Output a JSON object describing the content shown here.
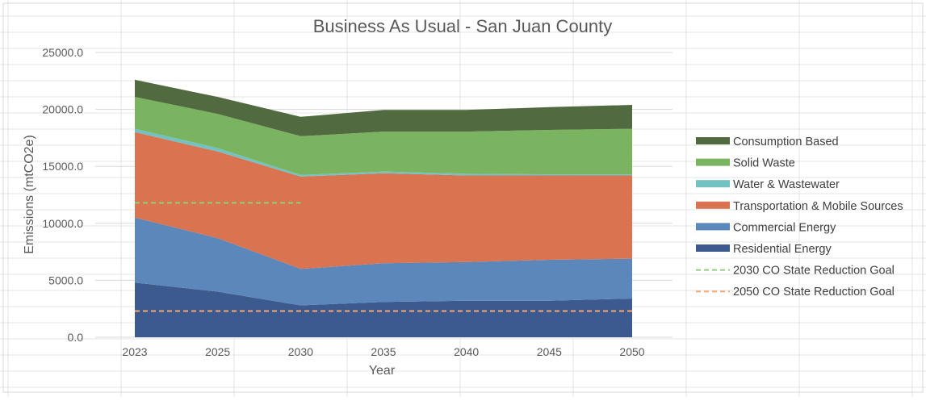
{
  "chart_data": {
    "type": "area",
    "stacked": true,
    "title": "Business As Usual - San Juan County",
    "xlabel": "Year",
    "ylabel": "Emissions (mtCO2e)",
    "categories": [
      "2023",
      "2025",
      "2030",
      "2035",
      "2040",
      "2045",
      "2050"
    ],
    "ylim": [
      0,
      25000
    ],
    "yticks": [
      "0.0",
      "5000.0",
      "10000.0",
      "15000.0",
      "20000.0",
      "25000.0"
    ],
    "ytick_values": [
      0,
      5000,
      10000,
      15000,
      20000,
      25000
    ],
    "grid": true,
    "legend_position": "right",
    "series": [
      {
        "name": "Residential Energy",
        "color": "#3d5a8f",
        "values": [
          4800,
          4000,
          2800,
          3100,
          3200,
          3200,
          3400
        ]
      },
      {
        "name": "Commercial Energy",
        "color": "#5b87bb",
        "values": [
          5700,
          4700,
          3200,
          3400,
          3400,
          3600,
          3500
        ]
      },
      {
        "name": "Transportation & Mobile Sources",
        "color": "#d97350",
        "values": [
          7500,
          7600,
          8100,
          7900,
          7600,
          7400,
          7300
        ]
      },
      {
        "name": "Water & Wastewater",
        "color": "#72c2c4",
        "values": [
          300,
          300,
          150,
          150,
          150,
          100,
          100
        ]
      },
      {
        "name": "Solid Waste",
        "color": "#7bb460",
        "values": [
          2800,
          3000,
          3400,
          3500,
          3700,
          3900,
          4000
        ]
      },
      {
        "name": "Consumption Based",
        "color": "#526a40",
        "values": [
          1500,
          1500,
          1700,
          1900,
          1900,
          2000,
          2100
        ]
      }
    ],
    "reference_lines": [
      {
        "name": "2030 CO State Reduction Goal",
        "color": "#8fd07a",
        "value": 11800,
        "from": "2023",
        "to": "2030"
      },
      {
        "name": "2050 CO State Reduction Goal",
        "color": "#f4a870",
        "value": 2300,
        "from": "2023",
        "to": "2050"
      }
    ],
    "legend_order": [
      "Consumption Based",
      "Solid Waste",
      "Water & Wastewater",
      "Transportation & Mobile Sources",
      "Commercial Energy",
      "Residential Energy",
      "2030 CO State Reduction Goal",
      "2050 CO State Reduction Goal"
    ]
  }
}
